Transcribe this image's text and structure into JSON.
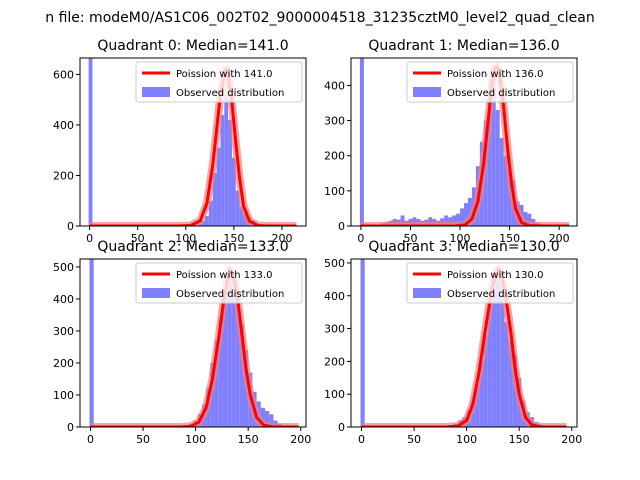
{
  "suptitle": "n file: modeM0/AS1C06_002T02_9000004518_31235cztM0_level2_quad_clean",
  "colors": {
    "hist": "#8080ff",
    "fit": "#ff0000",
    "fit_halo": "#f08080"
  },
  "chart_data": [
    {
      "type": "bar",
      "title": "Quadrant 0: Median=141.0",
      "xlim": [
        -10,
        225
      ],
      "ylim": [
        0,
        665
      ],
      "xticks": [
        0,
        50,
        100,
        150,
        200
      ],
      "yticks": [
        0,
        200,
        400,
        600
      ],
      "legend": {
        "placement": "top-right",
        "entries": [
          "Poission with 141.0",
          "Observed distribution"
        ]
      },
      "median": 141.0,
      "spike": {
        "x": 0,
        "width": 4,
        "height": 665
      },
      "bins": [
        [
          110,
          5
        ],
        [
          114,
          10
        ],
        [
          118,
          20
        ],
        [
          122,
          40
        ],
        [
          126,
          100
        ],
        [
          130,
          210
        ],
        [
          134,
          310
        ],
        [
          138,
          440
        ],
        [
          142,
          520
        ],
        [
          146,
          420
        ],
        [
          150,
          270
        ],
        [
          154,
          140
        ],
        [
          158,
          75
        ],
        [
          162,
          50
        ],
        [
          166,
          35
        ],
        [
          170,
          20
        ],
        [
          174,
          10
        ],
        [
          178,
          5
        ]
      ],
      "fit": [
        [
          0,
          0
        ],
        [
          90,
          0
        ],
        [
          105,
          2
        ],
        [
          115,
          20
        ],
        [
          122,
          90
        ],
        [
          128,
          240
        ],
        [
          132,
          380
        ],
        [
          136,
          520
        ],
        [
          140,
          600
        ],
        [
          142,
          620
        ],
        [
          144,
          600
        ],
        [
          148,
          490
        ],
        [
          152,
          330
        ],
        [
          156,
          190
        ],
        [
          160,
          80
        ],
        [
          166,
          20
        ],
        [
          175,
          2
        ],
        [
          185,
          0
        ],
        [
          215,
          0
        ]
      ]
    },
    {
      "type": "bar",
      "title": "Quadrant 1: Median=136.0",
      "xlim": [
        -10,
        218
      ],
      "ylim": [
        0,
        478
      ],
      "xticks": [
        0,
        50,
        100,
        150,
        200
      ],
      "yticks": [
        0,
        100,
        200,
        300,
        400
      ],
      "legend": {
        "placement": "top-right",
        "entries": [
          "Poission with 136.0",
          "Observed distribution"
        ]
      },
      "median": 136.0,
      "spike": {
        "x": 0,
        "width": 4,
        "height": 478
      },
      "bins": [
        [
          22,
          8
        ],
        [
          26,
          12
        ],
        [
          30,
          15
        ],
        [
          34,
          20
        ],
        [
          38,
          18
        ],
        [
          42,
          30
        ],
        [
          46,
          15
        ],
        [
          50,
          20
        ],
        [
          54,
          25
        ],
        [
          58,
          20
        ],
        [
          62,
          15
        ],
        [
          66,
          18
        ],
        [
          70,
          25
        ],
        [
          74,
          20
        ],
        [
          78,
          15
        ],
        [
          82,
          22
        ],
        [
          86,
          30
        ],
        [
          90,
          25
        ],
        [
          94,
          30
        ],
        [
          98,
          35
        ],
        [
          102,
          50
        ],
        [
          106,
          65
        ],
        [
          110,
          80
        ],
        [
          114,
          110
        ],
        [
          118,
          170
        ],
        [
          122,
          240
        ],
        [
          126,
          300
        ],
        [
          130,
          410
        ],
        [
          134,
          430
        ],
        [
          138,
          330
        ],
        [
          142,
          250
        ],
        [
          146,
          200
        ],
        [
          150,
          160
        ],
        [
          154,
          130
        ],
        [
          158,
          70
        ],
        [
          162,
          60
        ],
        [
          166,
          40
        ],
        [
          170,
          35
        ],
        [
          174,
          20
        ],
        [
          178,
          10
        ],
        [
          182,
          5
        ],
        [
          186,
          5
        ]
      ],
      "fit": [
        [
          0,
          0
        ],
        [
          95,
          0
        ],
        [
          105,
          3
        ],
        [
          112,
          20
        ],
        [
          118,
          70
        ],
        [
          124,
          180
        ],
        [
          128,
          290
        ],
        [
          132,
          400
        ],
        [
          135,
          450
        ],
        [
          137,
          455
        ],
        [
          140,
          430
        ],
        [
          144,
          340
        ],
        [
          148,
          220
        ],
        [
          152,
          120
        ],
        [
          156,
          50
        ],
        [
          162,
          10
        ],
        [
          170,
          1
        ],
        [
          185,
          0
        ],
        [
          210,
          0
        ]
      ]
    },
    {
      "type": "bar",
      "title": "Quadrant 2: Median=133.0",
      "xlim": [
        -10,
        205
      ],
      "ylim": [
        0,
        525
      ],
      "xticks": [
        0,
        50,
        100,
        150,
        200
      ],
      "yticks": [
        0,
        100,
        200,
        300,
        400,
        500
      ],
      "legend": {
        "placement": "top-right",
        "entries": [
          "Poission with 133.0",
          "Observed distribution"
        ]
      },
      "median": 133.0,
      "spike": {
        "x": 0,
        "width": 4,
        "height": 525
      },
      "bins": [
        [
          88,
          3
        ],
        [
          92,
          5
        ],
        [
          96,
          10
        ],
        [
          100,
          20
        ],
        [
          104,
          40
        ],
        [
          108,
          70
        ],
        [
          112,
          120
        ],
        [
          116,
          200
        ],
        [
          120,
          270
        ],
        [
          124,
          340
        ],
        [
          128,
          430
        ],
        [
          132,
          500
        ],
        [
          136,
          440
        ],
        [
          140,
          400
        ],
        [
          144,
          320
        ],
        [
          148,
          240
        ],
        [
          152,
          170
        ],
        [
          156,
          110
        ],
        [
          160,
          80
        ],
        [
          164,
          60
        ],
        [
          168,
          50
        ],
        [
          172,
          40
        ],
        [
          176,
          20
        ],
        [
          180,
          10
        ],
        [
          184,
          5
        ],
        [
          188,
          3
        ]
      ],
      "fit": [
        [
          0,
          0
        ],
        [
          85,
          0
        ],
        [
          95,
          2
        ],
        [
          103,
          15
        ],
        [
          110,
          60
        ],
        [
          116,
          150
        ],
        [
          122,
          280
        ],
        [
          126,
          380
        ],
        [
          130,
          460
        ],
        [
          133,
          490
        ],
        [
          136,
          470
        ],
        [
          140,
          400
        ],
        [
          144,
          290
        ],
        [
          148,
          180
        ],
        [
          152,
          100
        ],
        [
          158,
          30
        ],
        [
          165,
          5
        ],
        [
          175,
          0
        ],
        [
          198,
          0
        ]
      ]
    },
    {
      "type": "bar",
      "title": "Quadrant 3: Median=130.0",
      "xlim": [
        -10,
        205
      ],
      "ylim": [
        0,
        512
      ],
      "xticks": [
        0,
        50,
        100,
        150,
        200
      ],
      "yticks": [
        0,
        100,
        200,
        300,
        400,
        500
      ],
      "legend": {
        "placement": "top-right",
        "entries": [
          "Poission with 130.0",
          "Observed distribution"
        ]
      },
      "median": 130.0,
      "spike": {
        "x": 0,
        "width": 4,
        "height": 512
      },
      "bins": [
        [
          38,
          3
        ],
        [
          50,
          5
        ],
        [
          62,
          3
        ],
        [
          74,
          5
        ],
        [
          90,
          10
        ],
        [
          94,
          20
        ],
        [
          98,
          30
        ],
        [
          102,
          50
        ],
        [
          106,
          80
        ],
        [
          110,
          130
        ],
        [
          114,
          200
        ],
        [
          118,
          280
        ],
        [
          122,
          380
        ],
        [
          126,
          450
        ],
        [
          130,
          490
        ],
        [
          134,
          420
        ],
        [
          138,
          320
        ],
        [
          142,
          260
        ],
        [
          146,
          220
        ],
        [
          150,
          150
        ],
        [
          154,
          80
        ],
        [
          158,
          45
        ],
        [
          162,
          30
        ],
        [
          166,
          15
        ],
        [
          170,
          8
        ],
        [
          174,
          3
        ]
      ],
      "fit": [
        [
          0,
          0
        ],
        [
          80,
          0
        ],
        [
          92,
          3
        ],
        [
          100,
          20
        ],
        [
          106,
          70
        ],
        [
          112,
          170
        ],
        [
          118,
          300
        ],
        [
          124,
          420
        ],
        [
          128,
          470
        ],
        [
          130,
          480
        ],
        [
          133,
          465
        ],
        [
          137,
          400
        ],
        [
          142,
          290
        ],
        [
          146,
          180
        ],
        [
          150,
          100
        ],
        [
          156,
          30
        ],
        [
          162,
          6
        ],
        [
          172,
          0
        ],
        [
          195,
          0
        ]
      ]
    }
  ]
}
